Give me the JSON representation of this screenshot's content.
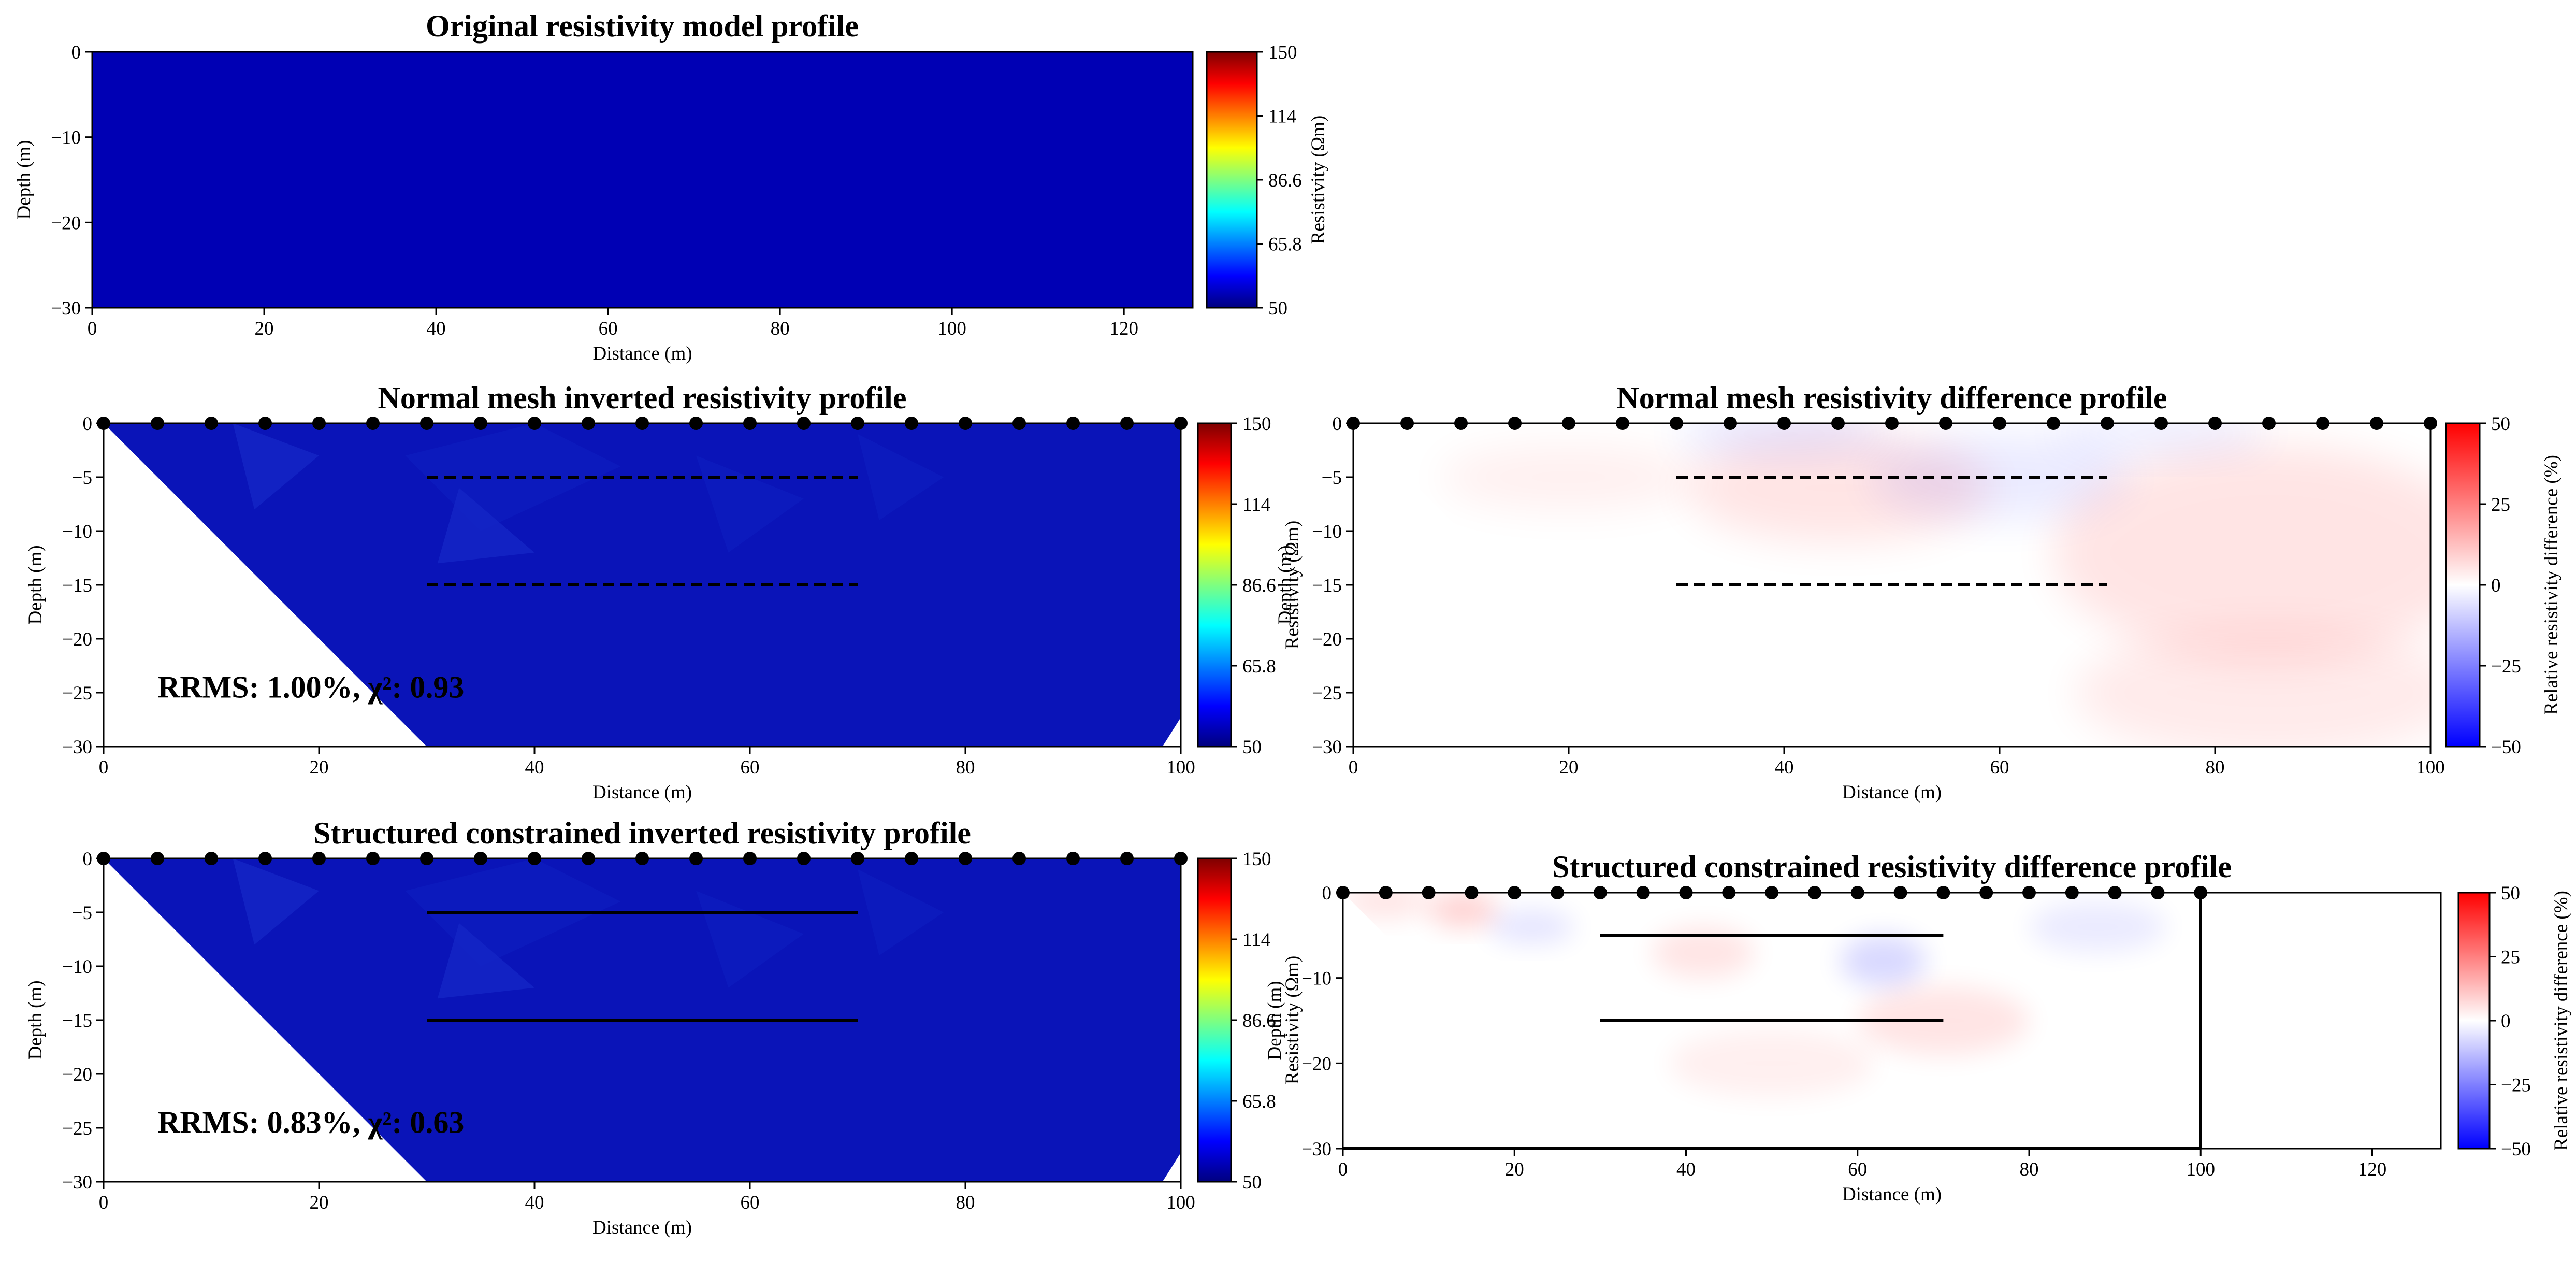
{
  "colors": {
    "model_fill": "#0000b4",
    "jet_stops": [
      "#00007f",
      "#0000ff",
      "#007fff",
      "#00ffff",
      "#7fff7f",
      "#ffff00",
      "#ff7f00",
      "#ff0000",
      "#7f0000"
    ],
    "bwr_stops": [
      "#0000ff",
      "#ffffff",
      "#ff0000"
    ],
    "diff_red": "#ff0000",
    "diff_blue": "#0000ff"
  },
  "chart_data": [
    {
      "id": "p1",
      "type": "heatmap",
      "title": "Original resistivity model profile",
      "xlabel": "Distance (m)",
      "ylabel": "Depth (m)",
      "xlim": [
        0,
        128
      ],
      "ylim": [
        -30,
        0
      ],
      "xticks": [
        0,
        20,
        40,
        60,
        80,
        100,
        120
      ],
      "yticks": [
        0,
        -10,
        -20,
        -30
      ],
      "value": 50,
      "colorbar": {
        "label": "Resistivity (Ωm)",
        "cmap": "jet",
        "range": [
          50,
          150
        ],
        "ticks": [
          "150",
          "114",
          "86.6",
          "65.8",
          "50"
        ]
      }
    },
    {
      "id": "p2",
      "type": "heatmap",
      "title": "Normal mesh inverted resistivity profile",
      "xlabel": "Distance (m)",
      "ylabel": "Depth (m)",
      "xlim": [
        0,
        100
      ],
      "ylim": [
        -30,
        0
      ],
      "xticks": [
        0,
        20,
        40,
        60,
        80,
        100
      ],
      "yticks": [
        0,
        -5,
        -10,
        -15,
        -20,
        -25,
        -30
      ],
      "electrodes": [
        0,
        5,
        10,
        15,
        20,
        25,
        30,
        35,
        40,
        45,
        50,
        55,
        60,
        65,
        70,
        75,
        80,
        85,
        90,
        95,
        100
      ],
      "boundaries": [
        {
          "x": [
            30,
            70
          ],
          "depth": -5
        },
        {
          "x": [
            30,
            70
          ],
          "depth": -15
        }
      ],
      "boundary_style": "dashed",
      "annotation": {
        "text": "RRMS: 1.00%, χ²: 0.93",
        "x": 5,
        "y": -24.5
      },
      "colorbar": {
        "label": "Resistivity (Ωm)",
        "cmap": "jet",
        "range": [
          50,
          150
        ],
        "ticks": [
          "150",
          "114",
          "86.6",
          "65.8",
          "50"
        ]
      }
    },
    {
      "id": "p3",
      "type": "heatmap",
      "title": "Normal mesh resistivity difference profile",
      "xlabel": "Distance (m)",
      "ylabel": "Depth (m)",
      "xlim": [
        0,
        100
      ],
      "ylim": [
        -30,
        0
      ],
      "xticks": [
        0,
        20,
        40,
        60,
        80,
        100
      ],
      "yticks": [
        0,
        -5,
        -10,
        -15,
        -20,
        -25,
        -30
      ],
      "electrodes": [
        0,
        5,
        10,
        15,
        20,
        25,
        30,
        35,
        40,
        45,
        50,
        55,
        60,
        65,
        70,
        75,
        80,
        85,
        90,
        95,
        100
      ],
      "boundaries": [
        {
          "x": [
            30,
            70
          ],
          "depth": -5
        },
        {
          "x": [
            30,
            70
          ],
          "depth": -15
        }
      ],
      "boundary_style": "dashed",
      "colorbar": {
        "label": "Relative resistivity difference (%)",
        "cmap": "bwr",
        "range": [
          -50,
          50
        ],
        "ticks": [
          "50",
          "25",
          "0",
          "-25",
          "-50"
        ]
      }
    },
    {
      "id": "p4",
      "type": "heatmap",
      "title": "Structured constrained inverted resistivity profile",
      "xlabel": "Distance (m)",
      "ylabel": "Depth (m)",
      "xlim": [
        0,
        100
      ],
      "ylim": [
        -30,
        0
      ],
      "xticks": [
        0,
        20,
        40,
        60,
        80,
        100
      ],
      "yticks": [
        0,
        -5,
        -10,
        -15,
        -20,
        -25,
        -30
      ],
      "electrodes": [
        0,
        5,
        10,
        15,
        20,
        25,
        30,
        35,
        40,
        45,
        50,
        55,
        60,
        65,
        70,
        75,
        80,
        85,
        90,
        95,
        100
      ],
      "boundaries": [
        {
          "x": [
            30,
            70
          ],
          "depth": -5
        },
        {
          "x": [
            30,
            70
          ],
          "depth": -15
        }
      ],
      "boundary_style": "solid",
      "annotation": {
        "text": "RRMS: 0.83%, χ²: 0.63",
        "x": 5,
        "y": -24.5
      },
      "colorbar": {
        "label": "Resistivity (Ωm)",
        "cmap": "jet",
        "range": [
          50,
          150
        ],
        "ticks": [
          "150",
          "114",
          "86.6",
          "65.8",
          "50"
        ]
      }
    },
    {
      "id": "p5",
      "type": "heatmap",
      "title": "Structured constrained resistivity difference profile",
      "xlabel": "Distance (m)",
      "ylabel": "Depth (m)",
      "xlim": [
        0,
        128
      ],
      "ylim": [
        -30,
        0
      ],
      "xticks": [
        0,
        20,
        40,
        60,
        80,
        100,
        120
      ],
      "yticks": [
        0,
        -10,
        -20,
        -30
      ],
      "electrodes": [
        0,
        5,
        10,
        15,
        20,
        25,
        30,
        35,
        40,
        45,
        50,
        55,
        60,
        65,
        70,
        75,
        80,
        85,
        90,
        95,
        100
      ],
      "boundaries": [
        {
          "x": [
            30,
            70
          ],
          "depth": -5
        },
        {
          "x": [
            30,
            70
          ],
          "depth": -15
        }
      ],
      "boundary_style": "solid",
      "domain_edge": 100,
      "colorbar": {
        "label": "Relative resistivity difference (%)",
        "cmap": "bwr",
        "range": [
          -50,
          50
        ],
        "ticks": [
          "50",
          "25",
          "0",
          "-25",
          "-50"
        ]
      }
    }
  ]
}
